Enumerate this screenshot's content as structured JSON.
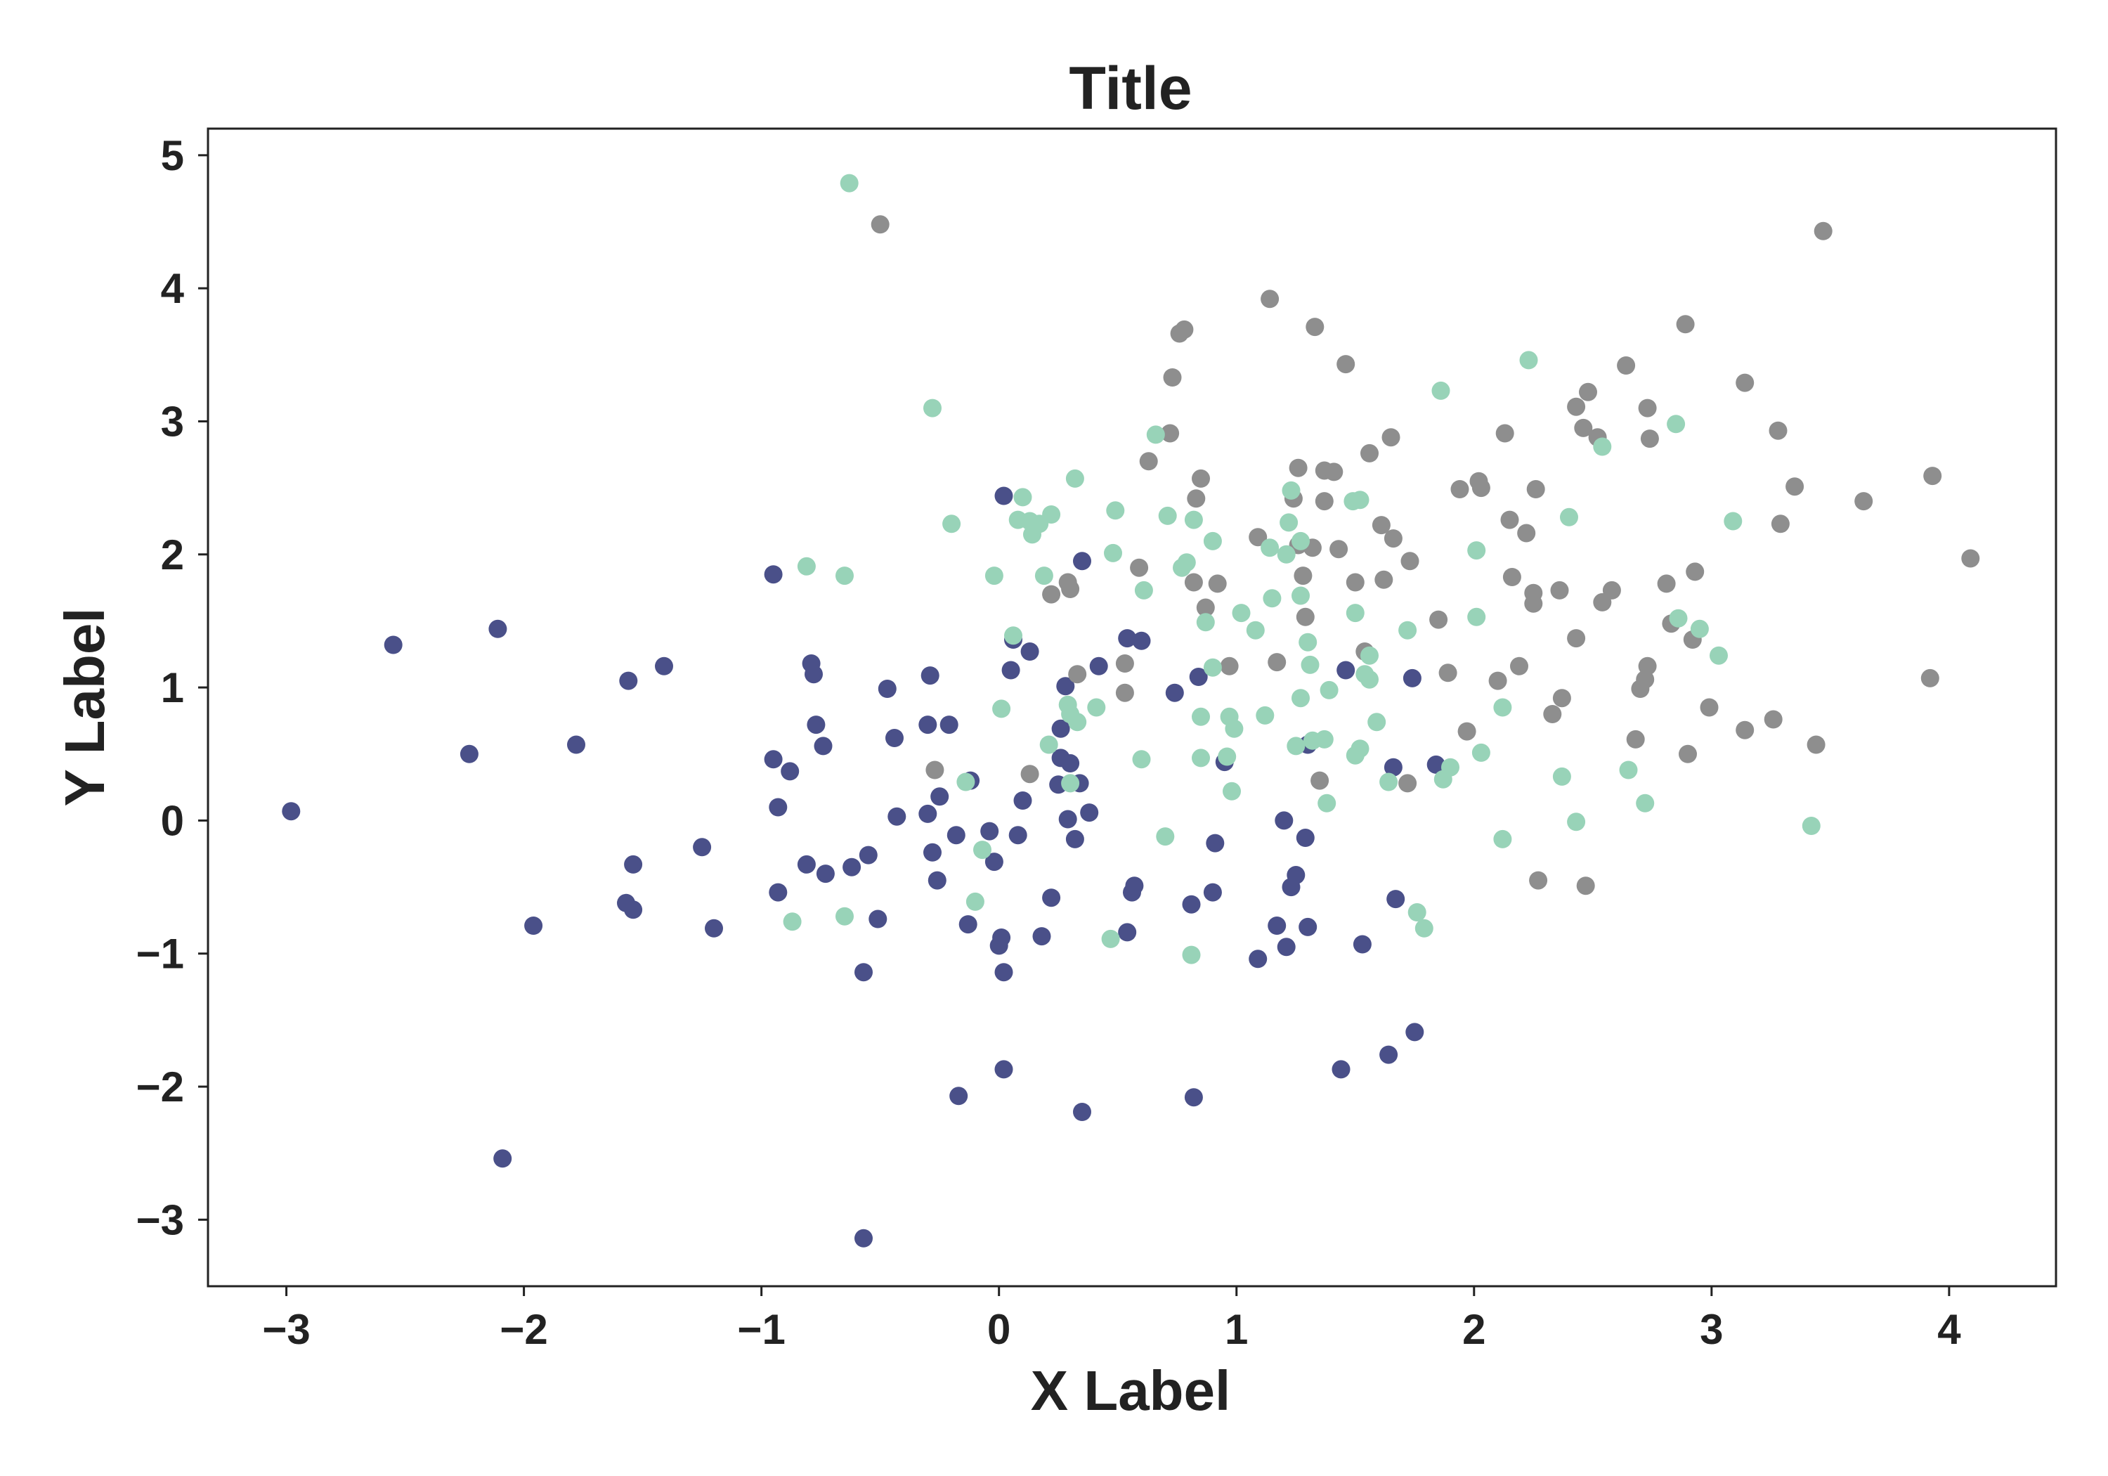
{
  "chart_data": {
    "type": "scatter",
    "title": "Title",
    "xlabel": "X Label",
    "ylabel": "Y Label",
    "xlim": [
      -3.33,
      4.45
    ],
    "ylim": [
      -3.5,
      5.2
    ],
    "xticks": [
      -3,
      -2,
      -1,
      0,
      1,
      2,
      3,
      4
    ],
    "xtick_labels": [
      "−3",
      "−2",
      "−1",
      "0",
      "1",
      "2",
      "3",
      "4"
    ],
    "yticks": [
      -3,
      -2,
      -1,
      0,
      1,
      2,
      3,
      4,
      5
    ],
    "ytick_labels": [
      "−3",
      "−2",
      "−1",
      "0",
      "1",
      "2",
      "3",
      "4",
      "5"
    ],
    "grid": false,
    "legend": "none",
    "series": [
      {
        "color": "#4a5089",
        "points": [
          [
            -2.98,
            0.07
          ],
          [
            -2.55,
            1.32
          ],
          [
            -2.23,
            0.5
          ],
          [
            -2.11,
            1.44
          ],
          [
            -2.09,
            -2.54
          ],
          [
            -1.96,
            -0.79
          ],
          [
            -1.78,
            0.57
          ],
          [
            -1.56,
            1.05
          ],
          [
            -1.57,
            -0.62
          ],
          [
            -1.54,
            -0.67
          ],
          [
            -1.54,
            -0.33
          ],
          [
            -1.41,
            1.16
          ],
          [
            -1.25,
            -0.2
          ],
          [
            -1.2,
            -0.81
          ],
          [
            -0.95,
            1.85
          ],
          [
            -0.95,
            0.46
          ],
          [
            -0.93,
            0.1
          ],
          [
            -0.93,
            -0.54
          ],
          [
            -0.88,
            0.37
          ],
          [
            -0.81,
            -0.33
          ],
          [
            -0.79,
            1.18
          ],
          [
            -0.78,
            1.1
          ],
          [
            -0.77,
            0.72
          ],
          [
            -0.74,
            0.56
          ],
          [
            -0.73,
            -0.4
          ],
          [
            -0.62,
            -0.35
          ],
          [
            -0.57,
            -1.14
          ],
          [
            -0.57,
            -3.14
          ],
          [
            -0.55,
            -0.26
          ],
          [
            -0.51,
            -0.74
          ],
          [
            -0.47,
            0.99
          ],
          [
            -0.44,
            0.62
          ],
          [
            -0.43,
            0.03
          ],
          [
            -0.3,
            0.72
          ],
          [
            -0.3,
            0.05
          ],
          [
            -0.29,
            1.09
          ],
          [
            -0.28,
            -0.24
          ],
          [
            -0.26,
            -0.45
          ],
          [
            -0.25,
            0.18
          ],
          [
            -0.21,
            0.72
          ],
          [
            -0.18,
            -0.11
          ],
          [
            -0.17,
            -2.07
          ],
          [
            -0.13,
            -0.78
          ],
          [
            -0.12,
            0.3
          ],
          [
            -0.04,
            -0.08
          ],
          [
            -0.02,
            -0.31
          ],
          [
            0.0,
            -0.94
          ],
          [
            0.01,
            -0.88
          ],
          [
            0.02,
            -1.14
          ],
          [
            0.02,
            2.44
          ],
          [
            0.02,
            -1.87
          ],
          [
            0.05,
            1.13
          ],
          [
            0.06,
            1.36
          ],
          [
            0.08,
            -0.11
          ],
          [
            0.1,
            0.15
          ],
          [
            0.13,
            1.27
          ],
          [
            0.18,
            -0.87
          ],
          [
            0.22,
            -0.58
          ],
          [
            0.25,
            0.27
          ],
          [
            0.26,
            0.69
          ],
          [
            0.26,
            0.47
          ],
          [
            0.28,
            1.01
          ],
          [
            0.29,
            0.01
          ],
          [
            0.3,
            0.43
          ],
          [
            0.32,
            -0.14
          ],
          [
            0.34,
            0.28
          ],
          [
            0.35,
            1.95
          ],
          [
            0.35,
            -2.19
          ],
          [
            0.38,
            0.06
          ],
          [
            0.42,
            1.16
          ],
          [
            0.54,
            1.37
          ],
          [
            0.54,
            -0.84
          ],
          [
            0.56,
            -0.54
          ],
          [
            0.57,
            -0.49
          ],
          [
            0.6,
            1.35
          ],
          [
            0.74,
            0.96
          ],
          [
            0.81,
            -0.63
          ],
          [
            0.82,
            -2.08
          ],
          [
            0.84,
            1.08
          ],
          [
            0.9,
            -0.54
          ],
          [
            0.91,
            -0.17
          ],
          [
            0.95,
            0.44
          ],
          [
            1.09,
            -1.04
          ],
          [
            1.17,
            -0.79
          ],
          [
            1.2,
            0.0
          ],
          [
            1.21,
            -0.95
          ],
          [
            1.23,
            -0.5
          ],
          [
            1.25,
            -0.41
          ],
          [
            1.29,
            -0.13
          ],
          [
            1.3,
            0.57
          ],
          [
            1.3,
            -0.8
          ],
          [
            1.44,
            -1.87
          ],
          [
            1.46,
            1.13
          ],
          [
            1.53,
            -0.93
          ],
          [
            1.64,
            -1.76
          ],
          [
            1.66,
            0.4
          ],
          [
            1.67,
            -0.59
          ],
          [
            1.74,
            1.07
          ],
          [
            1.75,
            -1.59
          ],
          [
            1.84,
            0.42
          ]
        ]
      },
      {
        "color": "#8e8e8e",
        "points": [
          [
            -0.5,
            4.48
          ],
          [
            -0.27,
            0.38
          ],
          [
            0.13,
            0.35
          ],
          [
            0.22,
            1.7
          ],
          [
            0.29,
            1.79
          ],
          [
            0.3,
            1.74
          ],
          [
            0.33,
            1.1
          ],
          [
            0.53,
            0.96
          ],
          [
            0.53,
            1.18
          ],
          [
            0.59,
            1.9
          ],
          [
            0.63,
            2.7
          ],
          [
            0.72,
            2.91
          ],
          [
            0.73,
            3.33
          ],
          [
            0.76,
            3.66
          ],
          [
            0.78,
            3.69
          ],
          [
            0.82,
            1.79
          ],
          [
            0.83,
            2.42
          ],
          [
            0.85,
            2.57
          ],
          [
            0.87,
            1.6
          ],
          [
            0.92,
            1.78
          ],
          [
            0.97,
            1.16
          ],
          [
            1.09,
            2.13
          ],
          [
            1.14,
            3.92
          ],
          [
            1.17,
            1.19
          ],
          [
            1.24,
            2.42
          ],
          [
            1.26,
            2.65
          ],
          [
            1.26,
            2.07
          ],
          [
            1.28,
            1.84
          ],
          [
            1.29,
            1.53
          ],
          [
            1.32,
            2.05
          ],
          [
            1.33,
            3.71
          ],
          [
            1.35,
            0.3
          ],
          [
            1.37,
            2.4
          ],
          [
            1.37,
            2.63
          ],
          [
            1.41,
            2.62
          ],
          [
            1.43,
            2.04
          ],
          [
            1.46,
            3.43
          ],
          [
            1.5,
            1.79
          ],
          [
            1.54,
            1.27
          ],
          [
            1.56,
            2.76
          ],
          [
            1.61,
            2.22
          ],
          [
            1.62,
            1.81
          ],
          [
            1.65,
            2.88
          ],
          [
            1.66,
            2.12
          ],
          [
            1.72,
            0.28
          ],
          [
            1.73,
            1.95
          ],
          [
            1.85,
            1.51
          ],
          [
            1.89,
            1.11
          ],
          [
            1.94,
            2.49
          ],
          [
            1.97,
            0.67
          ],
          [
            2.02,
            2.55
          ],
          [
            2.03,
            2.5
          ],
          [
            2.1,
            1.05
          ],
          [
            2.13,
            2.91
          ],
          [
            2.15,
            2.26
          ],
          [
            2.16,
            1.83
          ],
          [
            2.19,
            1.16
          ],
          [
            2.22,
            2.16
          ],
          [
            2.25,
            1.63
          ],
          [
            2.25,
            1.71
          ],
          [
            2.26,
            2.49
          ],
          [
            2.27,
            -0.45
          ],
          [
            2.33,
            0.8
          ],
          [
            2.36,
            1.73
          ],
          [
            2.37,
            0.92
          ],
          [
            2.43,
            3.11
          ],
          [
            2.43,
            1.37
          ],
          [
            2.46,
            2.95
          ],
          [
            2.47,
            -0.49
          ],
          [
            2.48,
            3.22
          ],
          [
            2.52,
            2.88
          ],
          [
            2.54,
            1.64
          ],
          [
            2.58,
            1.73
          ],
          [
            2.64,
            3.42
          ],
          [
            2.68,
            0.61
          ],
          [
            2.7,
            0.99
          ],
          [
            2.72,
            1.06
          ],
          [
            2.73,
            3.1
          ],
          [
            2.73,
            1.16
          ],
          [
            2.74,
            2.87
          ],
          [
            2.81,
            1.78
          ],
          [
            2.83,
            1.48
          ],
          [
            2.89,
            3.73
          ],
          [
            2.9,
            0.5
          ],
          [
            2.92,
            1.36
          ],
          [
            2.93,
            1.87
          ],
          [
            2.99,
            0.85
          ],
          [
            3.14,
            3.29
          ],
          [
            3.14,
            0.68
          ],
          [
            3.26,
            0.76
          ],
          [
            3.28,
            2.93
          ],
          [
            3.29,
            2.23
          ],
          [
            3.35,
            2.51
          ],
          [
            3.44,
            0.57
          ],
          [
            3.47,
            4.43
          ],
          [
            3.64,
            2.4
          ],
          [
            3.92,
            1.07
          ],
          [
            3.93,
            2.59
          ],
          [
            4.09,
            1.97
          ]
        ]
      },
      {
        "color": "#98d3b8",
        "points": [
          [
            -0.87,
            -0.76
          ],
          [
            -0.81,
            1.91
          ],
          [
            -0.65,
            1.84
          ],
          [
            -0.65,
            -0.72
          ],
          [
            -0.63,
            4.79
          ],
          [
            -0.28,
            3.1
          ],
          [
            -0.2,
            2.23
          ],
          [
            -0.14,
            0.29
          ],
          [
            -0.1,
            -0.61
          ],
          [
            -0.07,
            -0.22
          ],
          [
            -0.02,
            1.84
          ],
          [
            0.01,
            0.84
          ],
          [
            0.06,
            1.39
          ],
          [
            0.08,
            2.26
          ],
          [
            0.1,
            2.43
          ],
          [
            0.13,
            2.25
          ],
          [
            0.14,
            2.15
          ],
          [
            0.17,
            2.23
          ],
          [
            0.19,
            1.84
          ],
          [
            0.21,
            0.57
          ],
          [
            0.22,
            2.3
          ],
          [
            0.29,
            0.87
          ],
          [
            0.3,
            0.8
          ],
          [
            0.3,
            0.28
          ],
          [
            0.32,
            2.57
          ],
          [
            0.33,
            0.74
          ],
          [
            0.41,
            0.85
          ],
          [
            0.47,
            -0.89
          ],
          [
            0.48,
            2.01
          ],
          [
            0.49,
            2.33
          ],
          [
            0.6,
            0.46
          ],
          [
            0.61,
            1.73
          ],
          [
            0.66,
            2.9
          ],
          [
            0.7,
            -0.12
          ],
          [
            0.71,
            2.29
          ],
          [
            0.77,
            1.9
          ],
          [
            0.79,
            1.94
          ],
          [
            0.81,
            -1.01
          ],
          [
            0.82,
            2.26
          ],
          [
            0.85,
            0.78
          ],
          [
            0.85,
            0.47
          ],
          [
            0.87,
            1.49
          ],
          [
            0.9,
            2.1
          ],
          [
            0.9,
            1.15
          ],
          [
            0.96,
            0.48
          ],
          [
            0.97,
            0.78
          ],
          [
            0.98,
            0.22
          ],
          [
            0.99,
            0.69
          ],
          [
            1.02,
            1.56
          ],
          [
            1.08,
            1.43
          ],
          [
            1.12,
            0.79
          ],
          [
            1.14,
            2.05
          ],
          [
            1.15,
            1.67
          ],
          [
            1.21,
            2.0
          ],
          [
            1.22,
            2.24
          ],
          [
            1.23,
            2.48
          ],
          [
            1.25,
            0.56
          ],
          [
            1.27,
            2.1
          ],
          [
            1.27,
            1.69
          ],
          [
            1.27,
            0.92
          ],
          [
            1.3,
            1.34
          ],
          [
            1.31,
            1.17
          ],
          [
            1.32,
            0.6
          ],
          [
            1.37,
            0.61
          ],
          [
            1.38,
            0.13
          ],
          [
            1.39,
            0.98
          ],
          [
            1.49,
            2.4
          ],
          [
            1.5,
            1.56
          ],
          [
            1.5,
            0.49
          ],
          [
            1.52,
            2.41
          ],
          [
            1.52,
            0.54
          ],
          [
            1.54,
            1.1
          ],
          [
            1.56,
            1.06
          ],
          [
            1.56,
            1.24
          ],
          [
            1.59,
            0.74
          ],
          [
            1.64,
            0.29
          ],
          [
            1.72,
            1.43
          ],
          [
            1.76,
            -0.69
          ],
          [
            1.79,
            -0.81
          ],
          [
            1.86,
            3.23
          ],
          [
            1.87,
            0.31
          ],
          [
            1.9,
            0.4
          ],
          [
            2.01,
            1.53
          ],
          [
            2.01,
            2.03
          ],
          [
            2.03,
            0.51
          ],
          [
            2.12,
            -0.14
          ],
          [
            2.12,
            0.85
          ],
          [
            2.23,
            3.46
          ],
          [
            2.37,
            0.33
          ],
          [
            2.4,
            2.28
          ],
          [
            2.43,
            -0.01
          ],
          [
            2.54,
            2.81
          ],
          [
            2.65,
            0.38
          ],
          [
            2.72,
            0.13
          ],
          [
            2.85,
            2.98
          ],
          [
            2.86,
            1.52
          ],
          [
            2.95,
            1.44
          ],
          [
            3.03,
            1.24
          ],
          [
            3.09,
            2.25
          ],
          [
            3.42,
            -0.04
          ]
        ]
      }
    ]
  }
}
